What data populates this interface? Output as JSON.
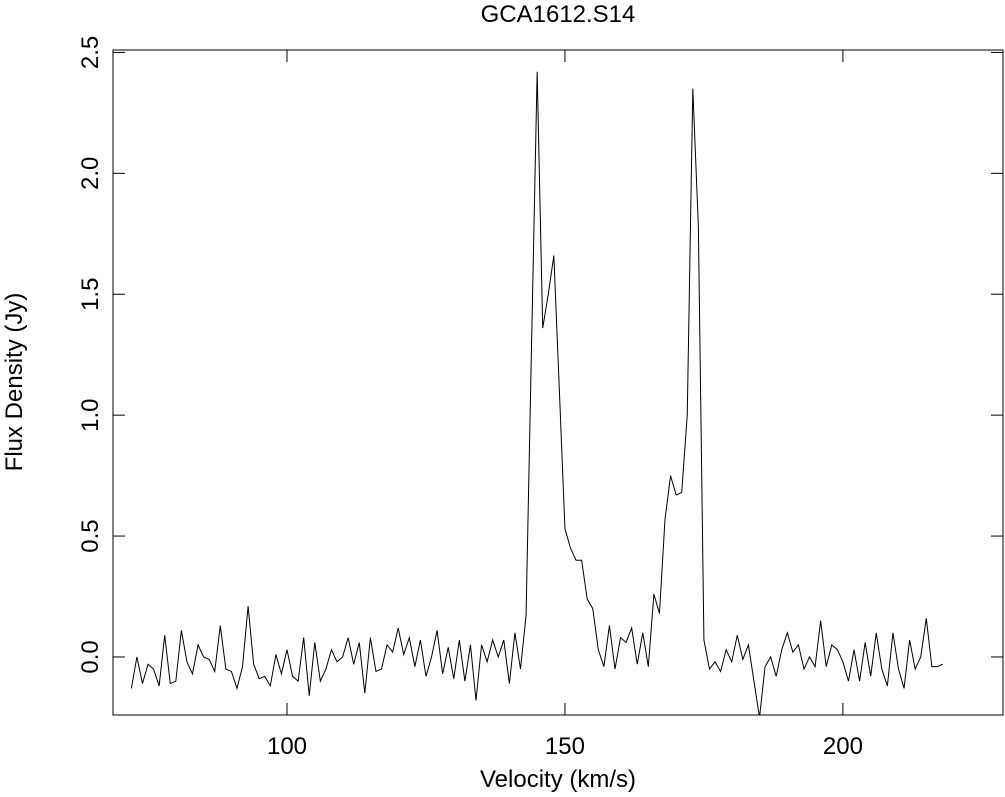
{
  "chart_data": {
    "type": "line",
    "title": "GCA1612.S14",
    "xlabel": "Velocity (km/s)",
    "ylabel": "Flux Density (Jy)",
    "xlim": [
      68.7,
      228.8
    ],
    "ylim": [
      -0.24,
      2.51
    ],
    "xticks": [
      100,
      150,
      200
    ],
    "yticks": [
      {
        "value": 0,
        "label": "0.0"
      },
      {
        "value": 0.5,
        "label": "0.5"
      },
      {
        "value": 1,
        "label": "1.0"
      },
      {
        "value": 1.5,
        "label": "1.5"
      },
      {
        "value": 2,
        "label": "2.0"
      },
      {
        "value": 2.5,
        "label": "2.5"
      }
    ],
    "x": [
      72,
      73,
      74,
      75,
      76,
      77,
      78,
      79,
      80,
      81,
      82,
      83,
      84,
      85,
      86,
      87,
      88,
      89,
      90,
      91,
      92,
      93,
      94,
      95,
      96,
      97,
      98,
      99,
      100,
      101,
      102,
      103,
      104,
      105,
      106,
      107,
      108,
      109,
      110,
      111,
      112,
      113,
      114,
      115,
      116,
      117,
      118,
      119,
      120,
      121,
      122,
      123,
      124,
      125,
      126,
      127,
      128,
      129,
      130,
      131,
      132,
      133,
      134,
      135,
      136,
      137,
      138,
      139,
      140,
      141,
      142,
      143,
      144,
      145,
      146,
      147,
      148,
      149,
      150,
      151,
      152,
      153,
      154,
      155,
      156,
      157,
      158,
      159,
      160,
      161,
      162,
      163,
      164,
      165,
      166,
      167,
      168,
      169,
      170,
      171,
      172,
      173,
      174,
      175,
      176,
      177,
      178,
      179,
      180,
      181,
      182,
      183,
      184,
      185,
      186,
      187,
      188,
      189,
      190,
      191,
      192,
      193,
      194,
      195,
      196,
      197,
      198,
      199,
      200,
      201,
      202,
      203,
      204,
      205,
      206,
      207,
      208,
      209,
      210,
      211,
      212,
      213,
      214,
      215,
      216,
      217,
      218
    ],
    "series": [
      {
        "color": "#000000",
        "values": [
          -0.13,
          0.0,
          -0.11,
          -0.03,
          -0.05,
          -0.12,
          0.09,
          -0.11,
          -0.1,
          0.11,
          -0.02,
          -0.07,
          0.05,
          0.0,
          -0.01,
          -0.06,
          0.13,
          -0.05,
          -0.06,
          -0.13,
          -0.04,
          0.21,
          -0.03,
          -0.09,
          -0.08,
          -0.12,
          0.01,
          -0.07,
          0.03,
          -0.08,
          -0.1,
          0.08,
          -0.16,
          0.06,
          -0.1,
          -0.05,
          0.03,
          -0.02,
          0.0,
          0.08,
          -0.03,
          0.06,
          -0.15,
          0.08,
          -0.06,
          -0.05,
          0.05,
          0.02,
          0.12,
          0.01,
          0.08,
          -0.04,
          0.07,
          -0.08,
          0.0,
          0.11,
          -0.07,
          0.04,
          -0.09,
          0.07,
          -0.1,
          0.05,
          -0.18,
          0.05,
          -0.02,
          0.07,
          0.0,
          0.07,
          -0.11,
          0.1,
          -0.05,
          0.17,
          1.3,
          2.42,
          1.36,
          1.5,
          1.66,
          1.1,
          0.53,
          0.45,
          0.4,
          0.4,
          0.24,
          0.2,
          0.03,
          -0.04,
          0.13,
          -0.05,
          0.08,
          0.06,
          0.12,
          -0.03,
          0.1,
          -0.04,
          0.26,
          0.18,
          0.57,
          0.75,
          0.67,
          0.68,
          1.0,
          2.35,
          1.78,
          0.07,
          -0.05,
          -0.02,
          -0.06,
          0.03,
          -0.02,
          0.09,
          -0.01,
          0.05,
          -0.1,
          -0.25,
          -0.04,
          0.0,
          -0.08,
          0.03,
          0.1,
          0.02,
          0.05,
          -0.05,
          0.0,
          -0.04,
          0.15,
          -0.04,
          0.05,
          0.03,
          -0.02,
          -0.1,
          0.03,
          -0.1,
          0.06,
          -0.08,
          0.1,
          -0.05,
          -0.12,
          0.1,
          -0.05,
          -0.13,
          0.07,
          -0.05,
          0.0,
          0.16,
          -0.04,
          -0.04,
          -0.03
        ]
      }
    ]
  }
}
